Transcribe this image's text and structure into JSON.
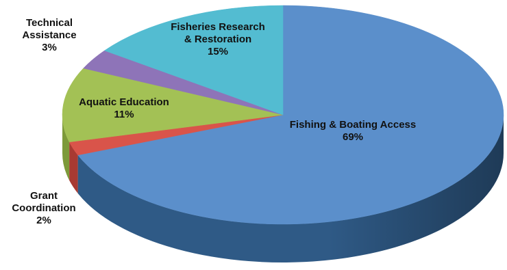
{
  "chart_data": {
    "type": "pie",
    "title": "",
    "slices": [
      {
        "label_lines": [
          "Fishing & Boating Access"
        ],
        "percent_text": "69%",
        "value": 69,
        "color": "#5b8fcb",
        "side_color": "#2f5a86"
      },
      {
        "label_lines": [
          "Grant",
          "Coordination"
        ],
        "percent_text": "2%",
        "value": 2,
        "color": "#d9544a",
        "side_color": "#a83a32"
      },
      {
        "label_lines": [
          "Aquatic Education"
        ],
        "percent_text": "11%",
        "value": 11,
        "color": "#a3c155",
        "side_color": "#7d9a3a"
      },
      {
        "label_lines": [
          "Technical",
          "Assistance"
        ],
        "percent_text": "3%",
        "value": 3,
        "color": "#8e74b8",
        "side_color": "#6a548f"
      },
      {
        "label_lines": [
          "Fisheries Research",
          "& Restoration"
        ],
        "percent_text": "15%",
        "value": 15,
        "color": "#53bcd1",
        "side_color": "#3a93a6"
      }
    ]
  }
}
